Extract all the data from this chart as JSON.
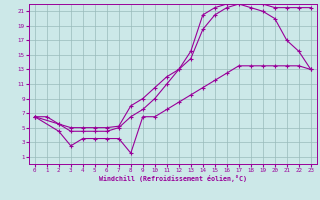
{
  "xlabel": "Windchill (Refroidissement éolien,°C)",
  "bg_color": "#cce8e8",
  "line_color": "#990099",
  "grid_color": "#99bbbb",
  "xlim": [
    -0.5,
    23.5
  ],
  "ylim": [
    0,
    22
  ],
  "xticks": [
    0,
    1,
    2,
    3,
    4,
    5,
    6,
    7,
    8,
    9,
    10,
    11,
    12,
    13,
    14,
    15,
    16,
    17,
    18,
    19,
    20,
    21,
    22,
    23
  ],
  "yticks": [
    1,
    3,
    5,
    7,
    9,
    11,
    13,
    15,
    17,
    19,
    21
  ],
  "line1_x": [
    0,
    1,
    2,
    3,
    4,
    5,
    6,
    7,
    8,
    9,
    10,
    11,
    12,
    13,
    14,
    15,
    16,
    17,
    18,
    19,
    20,
    21,
    22,
    23
  ],
  "line1_y": [
    6.5,
    6.5,
    5.5,
    5.0,
    5.0,
    5.0,
    5.0,
    5.2,
    8.0,
    9.0,
    10.5,
    12.0,
    13.0,
    15.5,
    20.5,
    21.5,
    22.0,
    22.5,
    22.5,
    22.0,
    21.5,
    21.5,
    21.5,
    21.5
  ],
  "line2_x": [
    0,
    2,
    3,
    4,
    5,
    6,
    7,
    8,
    9,
    10,
    11,
    12,
    13,
    14,
    15,
    16,
    17,
    18,
    19,
    20,
    21,
    22,
    23
  ],
  "line2_y": [
    6.5,
    5.5,
    4.5,
    4.5,
    4.5,
    4.5,
    5.0,
    6.5,
    7.5,
    9.0,
    11.0,
    13.0,
    14.5,
    18.5,
    20.5,
    21.5,
    22.0,
    21.5,
    21.0,
    20.0,
    17.0,
    15.5,
    13.0
  ],
  "line3_x": [
    0,
    2,
    3,
    4,
    5,
    6,
    7,
    8,
    9,
    10,
    11,
    12,
    13,
    14,
    15,
    16,
    17,
    18,
    19,
    20,
    21,
    22,
    23
  ],
  "line3_y": [
    6.5,
    4.5,
    2.5,
    3.5,
    3.5,
    3.5,
    3.5,
    1.5,
    6.5,
    6.5,
    7.5,
    8.5,
    9.5,
    10.5,
    11.5,
    12.5,
    13.5,
    13.5,
    13.5,
    13.5,
    13.5,
    13.5,
    13.0
  ]
}
